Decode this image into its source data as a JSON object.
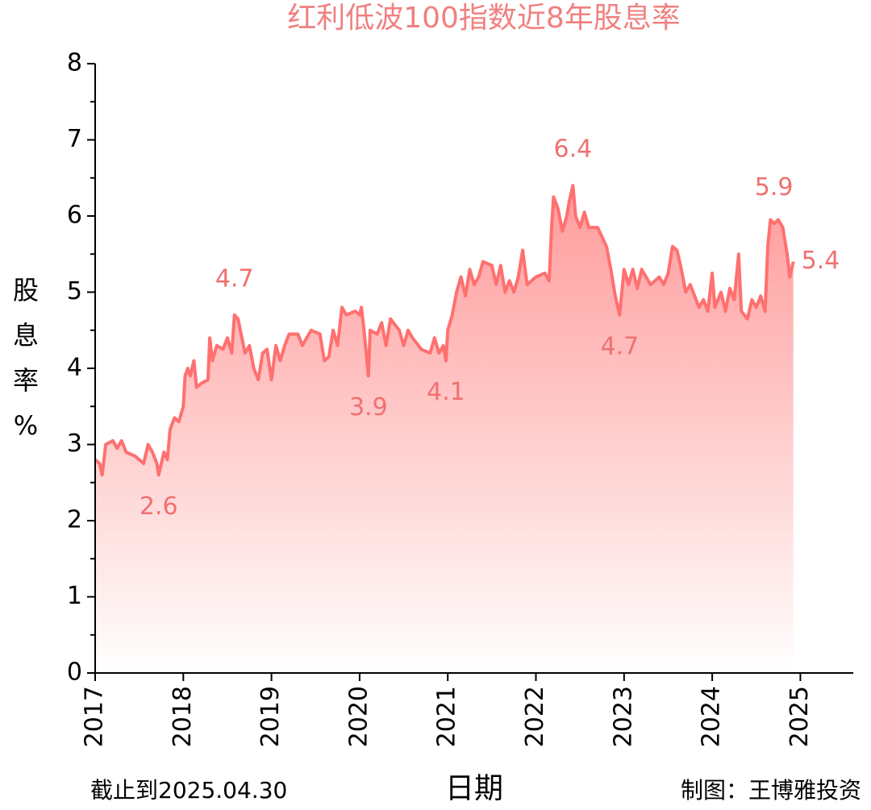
{
  "chart_data": {
    "type": "area",
    "title": "红利低波100指数近8年股息率",
    "ylabel": "股息率%",
    "xlabel": "日期",
    "footnote_left": "截止到2025.04.30",
    "footnote_right": "制图：王博雅投资",
    "color": "#ff7070",
    "xlim": [
      2017,
      2025.6
    ],
    "xticks": [
      2017,
      2018,
      2019,
      2020,
      2021,
      2022,
      2023,
      2024,
      2025
    ],
    "ylim": [
      0,
      8
    ],
    "yticks": [
      0,
      1,
      2,
      3,
      4,
      5,
      6,
      7,
      8
    ],
    "yminorticks": [
      0.5,
      1.5,
      2.5,
      3.5,
      4.5,
      5.5,
      6.5,
      7.5
    ],
    "x": [
      2017.0,
      2017.05,
      2017.08,
      2017.12,
      2017.2,
      2017.25,
      2017.3,
      2017.35,
      2017.45,
      2017.5,
      2017.55,
      2017.6,
      2017.65,
      2017.7,
      2017.72,
      2017.78,
      2017.82,
      2017.85,
      2017.9,
      2017.95,
      2018.0,
      2018.02,
      2018.05,
      2018.08,
      2018.12,
      2018.15,
      2018.2,
      2018.28,
      2018.3,
      2018.33,
      2018.38,
      2018.45,
      2018.5,
      2018.55,
      2018.58,
      2018.62,
      2018.7,
      2018.75,
      2018.8,
      2018.85,
      2018.9,
      2018.95,
      2019.0,
      2019.05,
      2019.1,
      2019.15,
      2019.2,
      2019.3,
      2019.35,
      2019.45,
      2019.55,
      2019.6,
      2019.65,
      2019.7,
      2019.75,
      2019.8,
      2019.85,
      2019.95,
      2020.0,
      2020.02,
      2020.05,
      2020.1,
      2020.12,
      2020.2,
      2020.25,
      2020.3,
      2020.35,
      2020.45,
      2020.5,
      2020.55,
      2020.6,
      2020.7,
      2020.8,
      2020.85,
      2020.9,
      2020.95,
      2020.98,
      2021.0,
      2021.05,
      2021.1,
      2021.15,
      2021.2,
      2021.25,
      2021.3,
      2021.35,
      2021.4,
      2021.5,
      2021.55,
      2021.6,
      2021.65,
      2021.7,
      2021.75,
      2021.8,
      2021.85,
      2021.9,
      2022.0,
      2022.1,
      2022.15,
      2022.18,
      2022.2,
      2022.25,
      2022.3,
      2022.35,
      2022.38,
      2022.42,
      2022.45,
      2022.5,
      2022.55,
      2022.6,
      2022.7,
      2022.8,
      2022.85,
      2022.9,
      2022.95,
      2023.0,
      2023.05,
      2023.1,
      2023.15,
      2023.2,
      2023.3,
      2023.4,
      2023.45,
      2023.5,
      2023.55,
      2023.6,
      2023.65,
      2023.7,
      2023.75,
      2023.8,
      2023.85,
      2023.9,
      2023.95,
      2024.0,
      2024.03,
      2024.1,
      2024.15,
      2024.2,
      2024.25,
      2024.3,
      2024.33,
      2024.4,
      2024.45,
      2024.5,
      2024.55,
      2024.6,
      2024.63,
      2024.66,
      2024.7,
      2024.75,
      2024.8,
      2024.85,
      2024.88,
      2024.9,
      2024.92
    ],
    "values": [
      2.8,
      2.75,
      2.6,
      3.0,
      3.05,
      2.95,
      3.05,
      2.9,
      2.85,
      2.8,
      2.75,
      3.0,
      2.9,
      2.75,
      2.6,
      2.9,
      2.8,
      3.2,
      3.35,
      3.3,
      3.5,
      3.9,
      4.0,
      3.9,
      4.1,
      3.75,
      3.8,
      3.85,
      4.4,
      4.1,
      4.3,
      4.25,
      4.4,
      4.2,
      4.7,
      4.65,
      4.2,
      4.3,
      4.0,
      3.85,
      4.2,
      4.25,
      3.85,
      4.3,
      4.1,
      4.3,
      4.45,
      4.45,
      4.3,
      4.5,
      4.45,
      4.1,
      4.15,
      4.5,
      4.3,
      4.8,
      4.7,
      4.75,
      4.7,
      4.8,
      4.5,
      3.9,
      4.5,
      4.45,
      4.6,
      4.3,
      4.65,
      4.5,
      4.3,
      4.5,
      4.4,
      4.25,
      4.2,
      4.4,
      4.2,
      4.3,
      4.1,
      4.5,
      4.7,
      5.0,
      5.2,
      4.95,
      5.3,
      5.1,
      5.2,
      5.4,
      5.35,
      5.1,
      5.35,
      5.0,
      5.15,
      5.0,
      5.2,
      5.55,
      5.1,
      5.2,
      5.25,
      5.15,
      5.9,
      6.25,
      6.1,
      5.8,
      6.0,
      6.2,
      6.4,
      6.0,
      5.85,
      6.05,
      5.85,
      5.85,
      5.6,
      5.3,
      4.95,
      4.7,
      5.3,
      5.1,
      5.3,
      5.05,
      5.3,
      5.1,
      5.2,
      5.1,
      5.25,
      5.6,
      5.55,
      5.3,
      5.0,
      5.1,
      4.95,
      4.8,
      4.9,
      4.75,
      5.25,
      4.8,
      5.0,
      4.75,
      5.05,
      4.9,
      5.5,
      4.75,
      4.65,
      4.9,
      4.8,
      4.95,
      4.75,
      5.6,
      5.95,
      5.9,
      5.95,
      5.85,
      5.5,
      5.2,
      5.3,
      5.4
    ],
    "annotations": [
      {
        "label": "2.6",
        "x": 2017.72,
        "y": 2.6,
        "position": "below"
      },
      {
        "label": "4.7",
        "x": 2018.58,
        "y": 4.7,
        "position": "above"
      },
      {
        "label": "3.9",
        "x": 2020.1,
        "y": 3.9,
        "position": "below"
      },
      {
        "label": "4.1",
        "x": 2020.98,
        "y": 4.1,
        "position": "below"
      },
      {
        "label": "6.4",
        "x": 2022.42,
        "y": 6.4,
        "position": "above"
      },
      {
        "label": "4.7",
        "x": 2022.95,
        "y": 4.7,
        "position": "below"
      },
      {
        "label": "5.9",
        "x": 2024.7,
        "y": 5.9,
        "position": "above"
      },
      {
        "label": "5.4",
        "x": 2024.92,
        "y": 5.4,
        "position": "right"
      }
    ]
  }
}
